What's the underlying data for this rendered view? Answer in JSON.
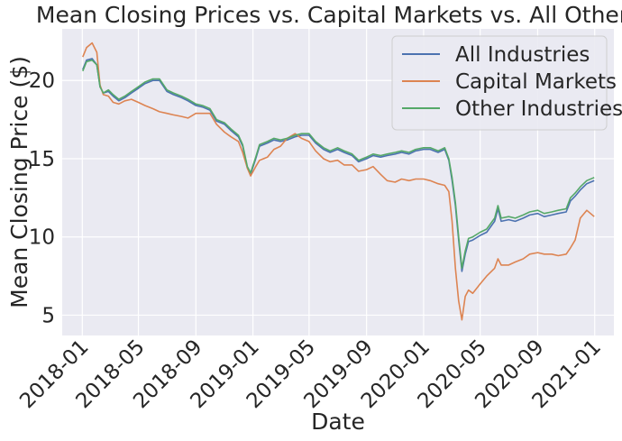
{
  "chart_data": {
    "type": "line",
    "title": "Mean Closing Prices vs. Capital Markets vs. All Others",
    "xlabel": "Date",
    "ylabel": "Mean Closing Price ($)",
    "x_axis": {
      "kind": "date",
      "range": [
        "2017-11-19",
        "2021-02-11"
      ],
      "ticks": [
        "2018-01-01",
        "2018-05-01",
        "2018-09-01",
        "2019-01-01",
        "2019-05-01",
        "2019-09-01",
        "2020-01-01",
        "2020-05-01",
        "2020-09-01",
        "2021-01-01"
      ],
      "tick_labels": [
        "2018-01",
        "2018-05",
        "2018-09",
        "2019-01",
        "2019-05",
        "2019-09",
        "2020-01",
        "2020-05",
        "2020-09",
        "2021-01"
      ]
    },
    "y_axis": {
      "range": [
        3.7,
        23.3
      ],
      "ticks": [
        5,
        10,
        15,
        20
      ],
      "tick_labels": [
        "5",
        "10",
        "15",
        "20"
      ]
    },
    "grid": true,
    "legend_position": "top-right",
    "colors": {
      "background": "#eaeaf2",
      "grid": "#ffffff",
      "text": "#262626"
    },
    "series": [
      {
        "name": "All Industries",
        "color": "#4c72b0",
        "points": [
          [
            "2018-01-02",
            20.7
          ],
          [
            "2018-01-10",
            21.3
          ],
          [
            "2018-01-22",
            21.4
          ],
          [
            "2018-02-01",
            21.0
          ],
          [
            "2018-02-08",
            19.6
          ],
          [
            "2018-02-15",
            19.2
          ],
          [
            "2018-02-26",
            19.3
          ],
          [
            "2018-03-08",
            19.0
          ],
          [
            "2018-03-20",
            18.7
          ],
          [
            "2018-04-02",
            18.9
          ],
          [
            "2018-04-16",
            19.2
          ],
          [
            "2018-05-01",
            19.5
          ],
          [
            "2018-05-15",
            19.8
          ],
          [
            "2018-06-01",
            20.0
          ],
          [
            "2018-06-15",
            20.0
          ],
          [
            "2018-07-01",
            19.3
          ],
          [
            "2018-07-15",
            19.1
          ],
          [
            "2018-08-01",
            18.9
          ],
          [
            "2018-08-15",
            18.7
          ],
          [
            "2018-09-01",
            18.4
          ],
          [
            "2018-09-15",
            18.3
          ],
          [
            "2018-10-01",
            18.1
          ],
          [
            "2018-10-15",
            17.4
          ],
          [
            "2018-11-01",
            17.2
          ],
          [
            "2018-11-15",
            16.8
          ],
          [
            "2018-12-01",
            16.4
          ],
          [
            "2018-12-10",
            15.8
          ],
          [
            "2018-12-20",
            14.4
          ],
          [
            "2018-12-27",
            14.0
          ],
          [
            "2019-01-07",
            15.0
          ],
          [
            "2019-01-15",
            15.8
          ],
          [
            "2019-02-01",
            16.0
          ],
          [
            "2019-02-15",
            16.2
          ],
          [
            "2019-03-01",
            16.1
          ],
          [
            "2019-03-15",
            16.2
          ],
          [
            "2019-04-01",
            16.4
          ],
          [
            "2019-04-15",
            16.5
          ],
          [
            "2019-05-01",
            16.5
          ],
          [
            "2019-05-15",
            16.0
          ],
          [
            "2019-06-01",
            15.6
          ],
          [
            "2019-06-15",
            15.4
          ],
          [
            "2019-07-01",
            15.6
          ],
          [
            "2019-07-15",
            15.4
          ],
          [
            "2019-08-01",
            15.2
          ],
          [
            "2019-08-15",
            14.8
          ],
          [
            "2019-09-01",
            15.0
          ],
          [
            "2019-09-15",
            15.2
          ],
          [
            "2019-10-01",
            15.1
          ],
          [
            "2019-10-15",
            15.2
          ],
          [
            "2019-11-01",
            15.3
          ],
          [
            "2019-11-15",
            15.4
          ],
          [
            "2019-12-01",
            15.3
          ],
          [
            "2019-12-15",
            15.5
          ],
          [
            "2020-01-01",
            15.6
          ],
          [
            "2020-01-15",
            15.6
          ],
          [
            "2020-02-01",
            15.4
          ],
          [
            "2020-02-15",
            15.6
          ],
          [
            "2020-02-24",
            14.9
          ],
          [
            "2020-03-02",
            13.6
          ],
          [
            "2020-03-09",
            12.0
          ],
          [
            "2020-03-16",
            9.8
          ],
          [
            "2020-03-23",
            7.8
          ],
          [
            "2020-03-30",
            8.9
          ],
          [
            "2020-04-06",
            9.7
          ],
          [
            "2020-04-15",
            9.8
          ],
          [
            "2020-05-01",
            10.1
          ],
          [
            "2020-05-15",
            10.3
          ],
          [
            "2020-06-01",
            11.0
          ],
          [
            "2020-06-08",
            11.8
          ],
          [
            "2020-06-15",
            11.0
          ],
          [
            "2020-07-01",
            11.1
          ],
          [
            "2020-07-15",
            11.0
          ],
          [
            "2020-08-01",
            11.2
          ],
          [
            "2020-08-15",
            11.4
          ],
          [
            "2020-09-01",
            11.5
          ],
          [
            "2020-09-15",
            11.3
          ],
          [
            "2020-10-01",
            11.4
          ],
          [
            "2020-10-15",
            11.5
          ],
          [
            "2020-11-01",
            11.6
          ],
          [
            "2020-11-10",
            12.3
          ],
          [
            "2020-11-20",
            12.6
          ],
          [
            "2020-12-01",
            13.0
          ],
          [
            "2020-12-15",
            13.4
          ],
          [
            "2020-12-31",
            13.6
          ]
        ]
      },
      {
        "name": "Capital Markets",
        "color": "#dd8452",
        "points": [
          [
            "2018-01-02",
            21.5
          ],
          [
            "2018-01-10",
            22.1
          ],
          [
            "2018-01-22",
            22.4
          ],
          [
            "2018-02-01",
            21.8
          ],
          [
            "2018-02-08",
            19.7
          ],
          [
            "2018-02-15",
            19.1
          ],
          [
            "2018-02-26",
            19.0
          ],
          [
            "2018-03-08",
            18.6
          ],
          [
            "2018-03-20",
            18.5
          ],
          [
            "2018-04-02",
            18.7
          ],
          [
            "2018-04-16",
            18.8
          ],
          [
            "2018-05-01",
            18.6
          ],
          [
            "2018-05-15",
            18.4
          ],
          [
            "2018-06-01",
            18.2
          ],
          [
            "2018-06-15",
            18.0
          ],
          [
            "2018-07-01",
            17.9
          ],
          [
            "2018-07-15",
            17.8
          ],
          [
            "2018-08-01",
            17.7
          ],
          [
            "2018-08-15",
            17.6
          ],
          [
            "2018-09-01",
            17.9
          ],
          [
            "2018-09-15",
            17.9
          ],
          [
            "2018-10-01",
            17.9
          ],
          [
            "2018-10-15",
            17.2
          ],
          [
            "2018-11-01",
            16.7
          ],
          [
            "2018-11-15",
            16.4
          ],
          [
            "2018-12-01",
            16.1
          ],
          [
            "2018-12-10",
            15.4
          ],
          [
            "2018-12-20",
            14.4
          ],
          [
            "2018-12-27",
            13.9
          ],
          [
            "2019-01-07",
            14.5
          ],
          [
            "2019-01-15",
            14.9
          ],
          [
            "2019-02-01",
            15.1
          ],
          [
            "2019-02-15",
            15.6
          ],
          [
            "2019-03-01",
            15.8
          ],
          [
            "2019-03-15",
            16.3
          ],
          [
            "2019-04-01",
            16.6
          ],
          [
            "2019-04-15",
            16.3
          ],
          [
            "2019-05-01",
            16.1
          ],
          [
            "2019-05-15",
            15.5
          ],
          [
            "2019-06-01",
            15.0
          ],
          [
            "2019-06-15",
            14.8
          ],
          [
            "2019-07-01",
            14.9
          ],
          [
            "2019-07-15",
            14.6
          ],
          [
            "2019-08-01",
            14.6
          ],
          [
            "2019-08-15",
            14.2
          ],
          [
            "2019-09-01",
            14.3
          ],
          [
            "2019-09-15",
            14.5
          ],
          [
            "2019-10-01",
            14.0
          ],
          [
            "2019-10-15",
            13.6
          ],
          [
            "2019-11-01",
            13.5
          ],
          [
            "2019-11-15",
            13.7
          ],
          [
            "2019-12-01",
            13.6
          ],
          [
            "2019-12-15",
            13.7
          ],
          [
            "2020-01-01",
            13.7
          ],
          [
            "2020-01-15",
            13.6
          ],
          [
            "2020-02-01",
            13.4
          ],
          [
            "2020-02-15",
            13.3
          ],
          [
            "2020-02-24",
            12.9
          ],
          [
            "2020-03-02",
            11.0
          ],
          [
            "2020-03-09",
            8.0
          ],
          [
            "2020-03-16",
            5.9
          ],
          [
            "2020-03-23",
            4.7
          ],
          [
            "2020-03-30",
            6.2
          ],
          [
            "2020-04-06",
            6.6
          ],
          [
            "2020-04-15",
            6.4
          ],
          [
            "2020-05-01",
            7.0
          ],
          [
            "2020-05-15",
            7.5
          ],
          [
            "2020-06-01",
            8.0
          ],
          [
            "2020-06-08",
            8.6
          ],
          [
            "2020-06-15",
            8.2
          ],
          [
            "2020-07-01",
            8.2
          ],
          [
            "2020-07-15",
            8.4
          ],
          [
            "2020-08-01",
            8.6
          ],
          [
            "2020-08-15",
            8.9
          ],
          [
            "2020-09-01",
            9.0
          ],
          [
            "2020-09-15",
            8.9
          ],
          [
            "2020-10-01",
            8.9
          ],
          [
            "2020-10-15",
            8.8
          ],
          [
            "2020-11-01",
            8.9
          ],
          [
            "2020-11-10",
            9.3
          ],
          [
            "2020-11-20",
            9.8
          ],
          [
            "2020-12-01",
            11.2
          ],
          [
            "2020-12-15",
            11.7
          ],
          [
            "2020-12-31",
            11.3
          ]
        ]
      },
      {
        "name": "Other Industries",
        "color": "#55a868",
        "points": [
          [
            "2018-01-02",
            20.6
          ],
          [
            "2018-01-10",
            21.2
          ],
          [
            "2018-01-22",
            21.3
          ],
          [
            "2018-02-01",
            21.0
          ],
          [
            "2018-02-08",
            19.6
          ],
          [
            "2018-02-15",
            19.2
          ],
          [
            "2018-02-26",
            19.4
          ],
          [
            "2018-03-08",
            19.1
          ],
          [
            "2018-03-20",
            18.8
          ],
          [
            "2018-04-02",
            19.0
          ],
          [
            "2018-04-16",
            19.3
          ],
          [
            "2018-05-01",
            19.6
          ],
          [
            "2018-05-15",
            19.9
          ],
          [
            "2018-06-01",
            20.1
          ],
          [
            "2018-06-15",
            20.1
          ],
          [
            "2018-07-01",
            19.4
          ],
          [
            "2018-07-15",
            19.2
          ],
          [
            "2018-08-01",
            19.0
          ],
          [
            "2018-08-15",
            18.8
          ],
          [
            "2018-09-01",
            18.5
          ],
          [
            "2018-09-15",
            18.4
          ],
          [
            "2018-10-01",
            18.2
          ],
          [
            "2018-10-15",
            17.5
          ],
          [
            "2018-11-01",
            17.3
          ],
          [
            "2018-11-15",
            16.9
          ],
          [
            "2018-12-01",
            16.5
          ],
          [
            "2018-12-10",
            15.9
          ],
          [
            "2018-12-20",
            14.5
          ],
          [
            "2018-12-27",
            14.1
          ],
          [
            "2019-01-07",
            15.1
          ],
          [
            "2019-01-15",
            15.9
          ],
          [
            "2019-02-01",
            16.1
          ],
          [
            "2019-02-15",
            16.3
          ],
          [
            "2019-03-01",
            16.2
          ],
          [
            "2019-03-15",
            16.3
          ],
          [
            "2019-04-01",
            16.5
          ],
          [
            "2019-04-15",
            16.6
          ],
          [
            "2019-05-01",
            16.6
          ],
          [
            "2019-05-15",
            16.1
          ],
          [
            "2019-06-01",
            15.7
          ],
          [
            "2019-06-15",
            15.5
          ],
          [
            "2019-07-01",
            15.7
          ],
          [
            "2019-07-15",
            15.5
          ],
          [
            "2019-08-01",
            15.3
          ],
          [
            "2019-08-15",
            14.9
          ],
          [
            "2019-09-01",
            15.1
          ],
          [
            "2019-09-15",
            15.3
          ],
          [
            "2019-10-01",
            15.2
          ],
          [
            "2019-10-15",
            15.3
          ],
          [
            "2019-11-01",
            15.4
          ],
          [
            "2019-11-15",
            15.5
          ],
          [
            "2019-12-01",
            15.4
          ],
          [
            "2019-12-15",
            15.6
          ],
          [
            "2020-01-01",
            15.7
          ],
          [
            "2020-01-15",
            15.7
          ],
          [
            "2020-02-01",
            15.5
          ],
          [
            "2020-02-15",
            15.7
          ],
          [
            "2020-02-24",
            15.0
          ],
          [
            "2020-03-02",
            13.8
          ],
          [
            "2020-03-09",
            12.2
          ],
          [
            "2020-03-16",
            10.0
          ],
          [
            "2020-03-23",
            8.0
          ],
          [
            "2020-03-30",
            9.1
          ],
          [
            "2020-04-06",
            9.9
          ],
          [
            "2020-04-15",
            10.0
          ],
          [
            "2020-05-01",
            10.3
          ],
          [
            "2020-05-15",
            10.5
          ],
          [
            "2020-06-01",
            11.2
          ],
          [
            "2020-06-08",
            12.0
          ],
          [
            "2020-06-15",
            11.2
          ],
          [
            "2020-07-01",
            11.3
          ],
          [
            "2020-07-15",
            11.2
          ],
          [
            "2020-08-01",
            11.4
          ],
          [
            "2020-08-15",
            11.6
          ],
          [
            "2020-09-01",
            11.7
          ],
          [
            "2020-09-15",
            11.5
          ],
          [
            "2020-10-01",
            11.6
          ],
          [
            "2020-10-15",
            11.7
          ],
          [
            "2020-11-01",
            11.8
          ],
          [
            "2020-11-10",
            12.5
          ],
          [
            "2020-11-20",
            12.8
          ],
          [
            "2020-12-01",
            13.2
          ],
          [
            "2020-12-15",
            13.6
          ],
          [
            "2020-12-31",
            13.8
          ]
        ]
      }
    ]
  }
}
